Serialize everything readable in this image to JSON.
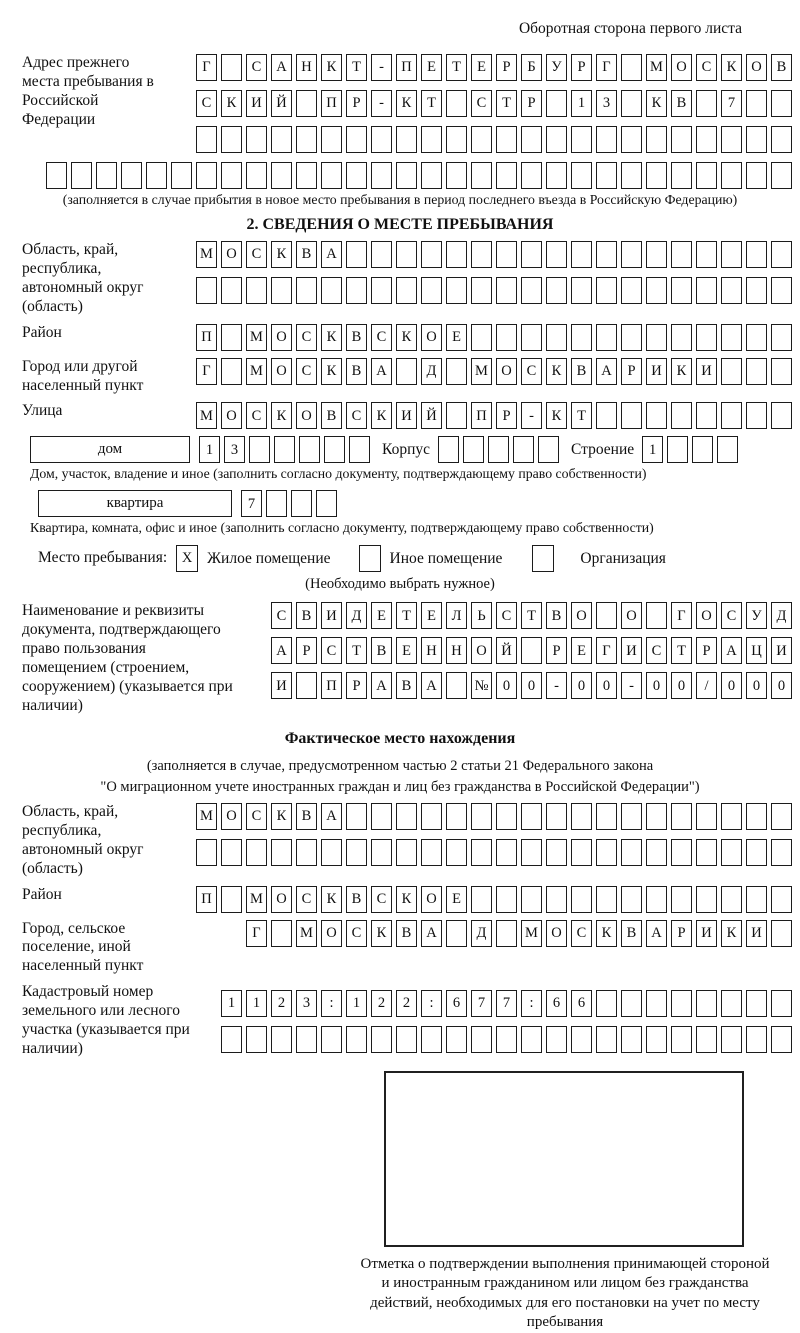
{
  "page": {
    "corner_note": "Оборотная сторона первого листа"
  },
  "prev_address": {
    "label": "Адрес прежнего места пребывания в Российской Федерации",
    "rows": [
      {
        "chars": "Г САНКТ-ПЕТЕРБУРГ МОСКОВ",
        "count": 24
      },
      {
        "chars": "СКИЙ ПР-КТ СТР 13 КВ 7",
        "count": 24
      },
      {
        "chars": "",
        "count": 24
      },
      {
        "chars": "",
        "count": 30
      }
    ],
    "note": "(заполняется в случае прибытия в новое место пребывания в период последнего въезда в Российскую Федерацию)"
  },
  "section2": {
    "title": "2. СВЕДЕНИЯ О МЕСТЕ ПРЕБЫВАНИЯ",
    "region": {
      "label": "Область, край, республика, автономный округ (область)",
      "rows": [
        {
          "chars": "МОСКВА",
          "count": 24
        },
        {
          "chars": "",
          "count": 24
        }
      ]
    },
    "district": {
      "label": "Район",
      "row": {
        "chars": "П МОСКВСКОЕ",
        "count": 24
      }
    },
    "city": {
      "label": "Город или другой населенный пункт",
      "row": {
        "chars": "Г МОСКВА Д МОСКВАРИКИ",
        "count": 24
      }
    },
    "street": {
      "label": "Улица",
      "row": {
        "chars": "МОСКОВСКИЙ ПР-КТ",
        "count": 24
      }
    },
    "house": {
      "box_label": "дом",
      "row": {
        "chars": "13",
        "count": 7
      },
      "korpus_label": "Корпус",
      "korpus_row": {
        "chars": "",
        "count": 5
      },
      "stroenie_label": "Строение",
      "stroenie_row": {
        "chars": "1",
        "count": 4
      }
    },
    "house_note": "Дом, участок, владение и иное (заполнить согласно документу, подтверждающему право собственности)",
    "apartment": {
      "box_label": "квартира",
      "row": {
        "chars": "7",
        "count": 4
      }
    },
    "apartment_note": "Квартира, комната, офис и иное (заполнить согласно документу, подтверждающему право собственности)",
    "stay_type": {
      "label": "Место пребывания:",
      "options": [
        {
          "label": "Жилое помещение",
          "checked": "X"
        },
        {
          "label": "Иное помещение",
          "checked": ""
        },
        {
          "label": "Организация",
          "checked": ""
        }
      ],
      "note": "(Необходимо выбрать нужное)"
    },
    "doc": {
      "label": "Наименование и реквизиты документа, подтверждающего право пользования помещением (строением, сооружением) (указывается при наличии)",
      "rows": [
        {
          "chars": "СВИДЕТЕЛЬСТВО О ГОСУД",
          "count": 21
        },
        {
          "chars": "АРСТВЕННОЙ РЕГИСТРАЦИ",
          "count": 21
        },
        {
          "chars": "И ПРАВА №00-00-00/000",
          "count": 21
        }
      ]
    }
  },
  "actual_location": {
    "title": "Фактическое место нахождения",
    "note_line1": "(заполняется в случае, предусмотренном частью 2 статьи 21 Федерального закона",
    "note_line2": "\"О миграционном учете иностранных граждан и лиц без гражданства в Российской Федерации\")",
    "region": {
      "label": "Область, край, республика, автономный округ (область)",
      "rows": [
        {
          "chars": "МОСКВА",
          "count": 24
        },
        {
          "chars": "",
          "count": 24
        }
      ]
    },
    "district": {
      "label": "Район",
      "row": {
        "chars": "П МОСКВСКОЕ",
        "count": 24
      }
    },
    "city": {
      "label": "Город, сельское поселение, иной населенный пункт",
      "row": {
        "chars": "Г МОСКВА Д МОСКВАРИКИ",
        "count": 22
      }
    },
    "cadastre": {
      "label": "Кадастровый номер земельного или лесного участка (указывается при наличии)",
      "rows": [
        {
          "chars": "1123:122:677:66",
          "count": 23
        },
        {
          "chars": "",
          "count": 23
        }
      ]
    }
  },
  "stamp": {
    "caption": "Отметка о подтверждении выполнения принимающей стороной и иностранным гражданином или лицом без гражданства действий, необходимых для его постановки на учет по месту пребывания"
  }
}
